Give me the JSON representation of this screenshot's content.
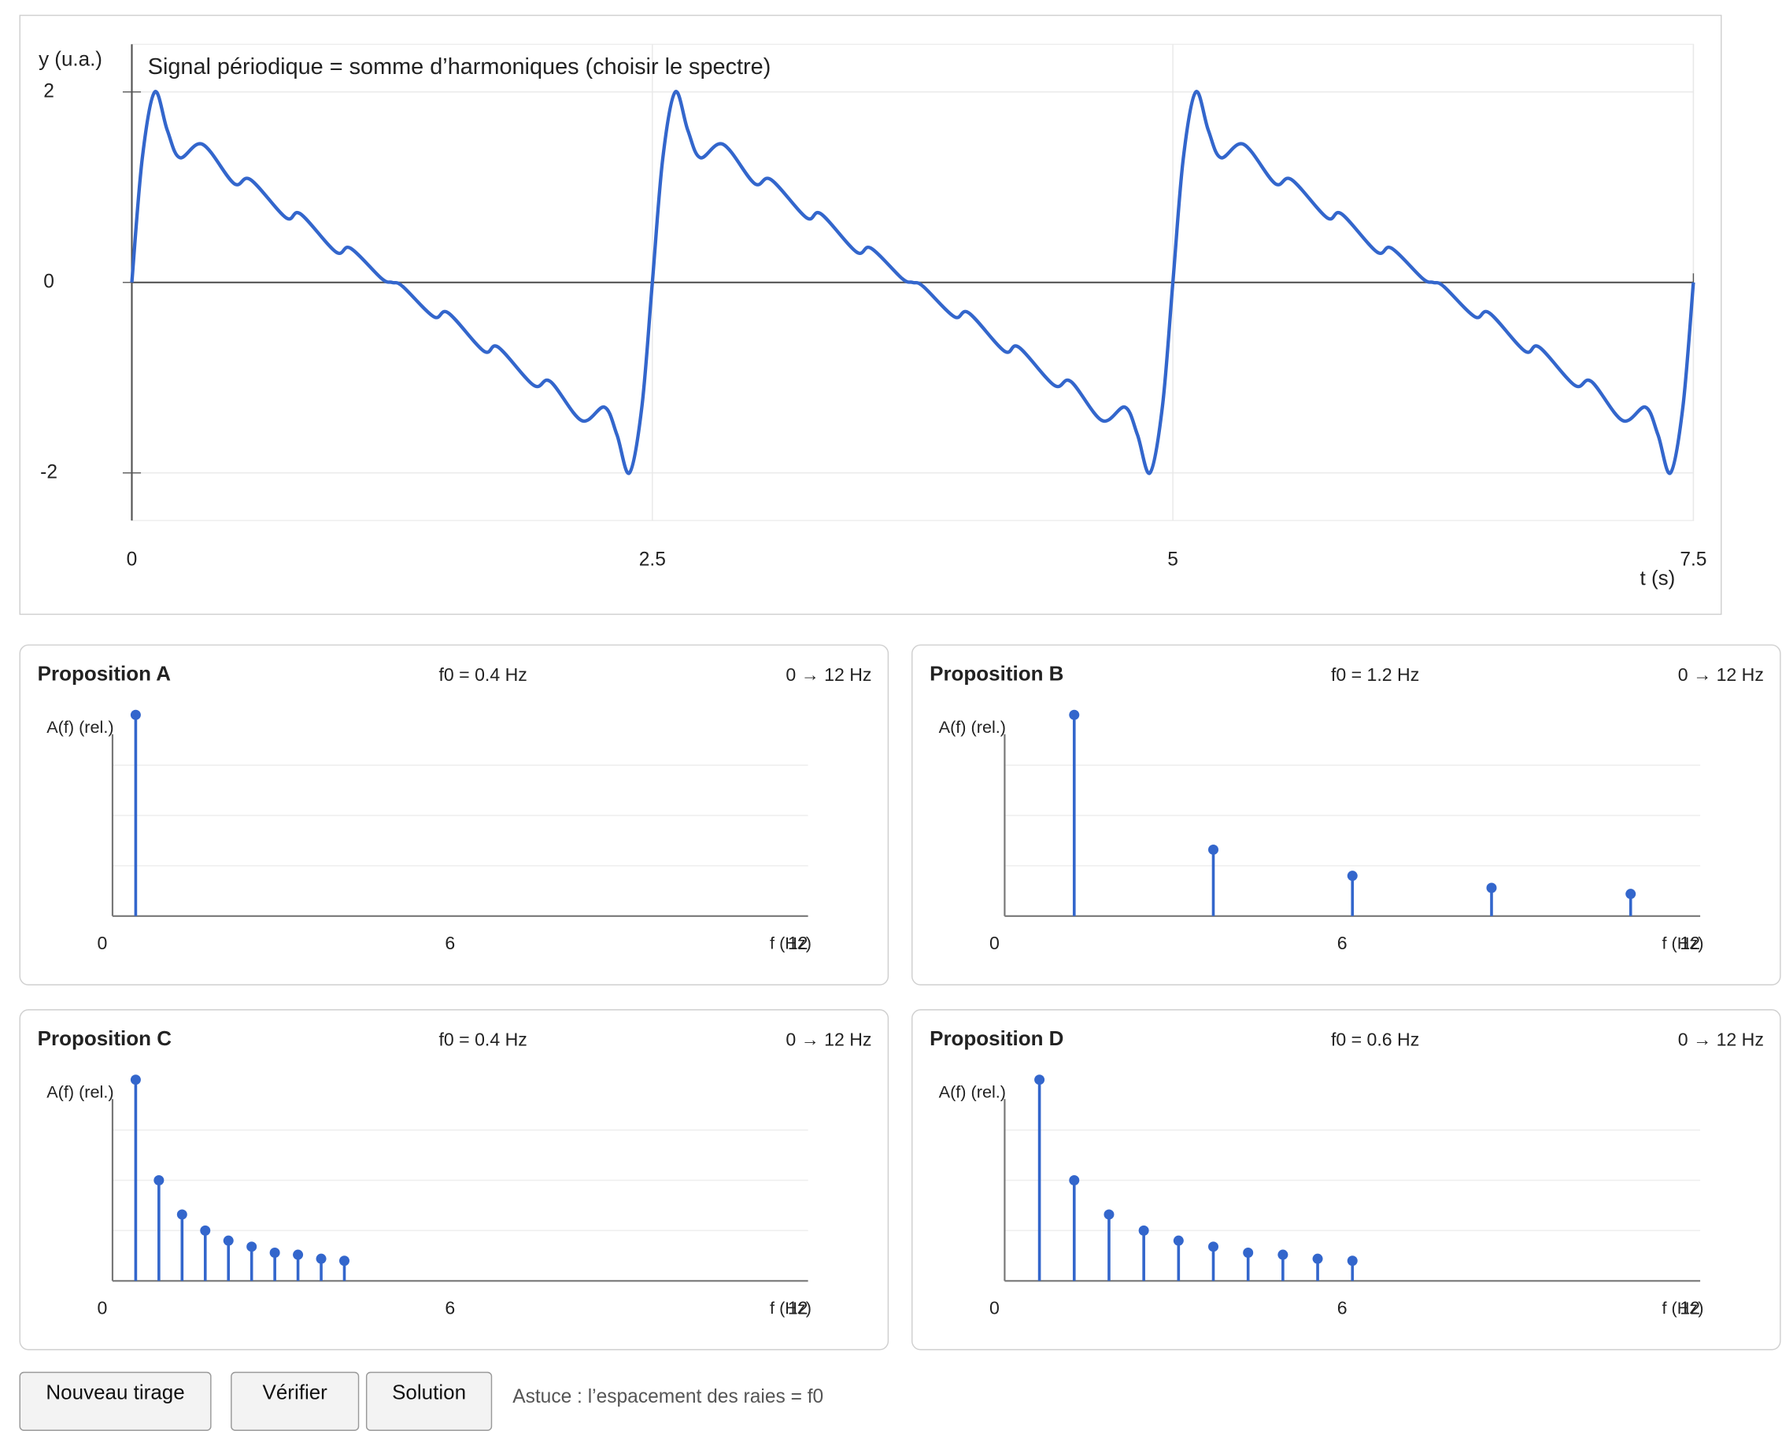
{
  "chart_data": [
    {
      "type": "line",
      "title": "Signal périodique = somme d’harmoniques (choisir le spectre)",
      "y_label": "y (u.a.)",
      "x_label": "t (s)",
      "color": "#3366cc",
      "x": [
        0,
        0.05,
        0.11,
        0.17,
        0.23,
        0.34,
        0.49,
        0.57,
        0.74,
        0.81,
        0.98,
        1.05,
        1.2,
        1.25,
        1.3,
        1.45,
        1.52,
        1.69,
        1.76,
        1.93,
        2.01,
        2.16,
        2.27,
        2.33,
        2.39,
        2.45,
        2.5,
        2.55,
        2.61,
        2.67,
        2.73,
        2.84,
        2.99,
        3.07,
        3.24,
        3.31,
        3.48,
        3.55,
        3.7,
        3.75,
        3.8,
        3.95,
        4.02,
        4.19,
        4.26,
        4.43,
        4.51,
        4.66,
        4.77,
        4.83,
        4.89,
        4.95,
        5,
        5.05,
        5.11,
        5.17,
        5.23,
        5.34,
        5.49,
        5.57,
        5.74,
        5.81,
        5.98,
        6.05,
        6.2,
        6.25,
        6.3,
        6.45,
        6.52,
        6.69,
        6.76,
        6.93,
        7.01,
        7.16,
        7.27,
        7.33,
        7.39,
        7.45,
        7.5
      ],
      "values": [
        0,
        1.3,
        2,
        1.6,
        1.31,
        1.45,
        1.04,
        1.08,
        0.68,
        0.72,
        0.32,
        0.36,
        0.04,
        0,
        -0.04,
        -0.36,
        -0.32,
        -0.72,
        -0.68,
        -1.08,
        -1.04,
        -1.45,
        -1.31,
        -1.6,
        -2,
        -1.3,
        0,
        1.3,
        2,
        1.6,
        1.31,
        1.45,
        1.04,
        1.08,
        0.68,
        0.72,
        0.32,
        0.36,
        0.04,
        0,
        -0.04,
        -0.36,
        -0.32,
        -0.72,
        -0.68,
        -1.08,
        -1.04,
        -1.45,
        -1.31,
        -1.6,
        -2,
        -1.3,
        0,
        1.3,
        2,
        1.6,
        1.31,
        1.45,
        1.04,
        1.08,
        0.68,
        0.72,
        0.32,
        0.36,
        0.04,
        0,
        -0.04,
        -0.36,
        -0.32,
        -0.72,
        -0.68,
        -1.08,
        -1.04,
        -1.45,
        -1.31,
        -1.6,
        -2,
        -1.3,
        0
      ],
      "xlim": [
        0,
        7.5
      ],
      "xticks": [
        0,
        2.5,
        5,
        7.5
      ],
      "ylim": [
        -2.5,
        2.5
      ],
      "yticks": [
        -2,
        0,
        2
      ]
    },
    {
      "type": "stem",
      "title": "Proposition A",
      "subtitle": "f0 = 0.4 Hz",
      "range_label": "0 → 12 Hz",
      "y_label": "A(f) (rel.)",
      "x_label": "f (Hz)",
      "color": "#3366cc",
      "x": [
        0.4
      ],
      "values": [
        1
      ],
      "xlim": [
        0,
        12
      ],
      "xticks": [
        0,
        6,
        12
      ],
      "ylim": [
        0,
        1
      ],
      "ygrid": [
        0.25,
        0.5,
        0.75
      ]
    },
    {
      "type": "stem",
      "title": "Proposition B",
      "subtitle": "f0 = 1.2 Hz",
      "range_label": "0 → 12 Hz",
      "y_label": "A(f) (rel.)",
      "x_label": "f (Hz)",
      "color": "#3366cc",
      "x": [
        1.2,
        3.6,
        6,
        8.4,
        10.8
      ],
      "values": [
        1,
        0.33,
        0.2,
        0.14,
        0.11
      ],
      "xlim": [
        0,
        12
      ],
      "xticks": [
        0,
        6,
        12
      ],
      "ylim": [
        0,
        1
      ],
      "ygrid": [
        0.25,
        0.5,
        0.75
      ]
    },
    {
      "type": "stem",
      "title": "Proposition C",
      "subtitle": "f0 = 0.4 Hz",
      "range_label": "0 → 12 Hz",
      "y_label": "A(f) (rel.)",
      "x_label": "f (Hz)",
      "color": "#3366cc",
      "x": [
        0.4,
        0.8,
        1.2,
        1.6,
        2,
        2.4,
        2.8,
        3.2,
        3.6,
        4
      ],
      "values": [
        1,
        0.5,
        0.33,
        0.25,
        0.2,
        0.17,
        0.14,
        0.13,
        0.11,
        0.1
      ],
      "xlim": [
        0,
        12
      ],
      "xticks": [
        0,
        6,
        12
      ],
      "ylim": [
        0,
        1
      ],
      "ygrid": [
        0.25,
        0.5,
        0.75
      ]
    },
    {
      "type": "stem",
      "title": "Proposition D",
      "subtitle": "f0 = 0.6 Hz",
      "range_label": "0 → 12 Hz",
      "y_label": "A(f) (rel.)",
      "x_label": "f (Hz)",
      "color": "#3366cc",
      "x": [
        0.6,
        1.2,
        1.8,
        2.4,
        3,
        3.6,
        4.2,
        4.8,
        5.4,
        6
      ],
      "values": [
        1,
        0.5,
        0.33,
        0.25,
        0.2,
        0.17,
        0.14,
        0.13,
        0.11,
        0.1
      ],
      "xlim": [
        0,
        12
      ],
      "xticks": [
        0,
        6,
        12
      ],
      "ylim": [
        0,
        1
      ],
      "ygrid": [
        0.25,
        0.5,
        0.75
      ]
    }
  ],
  "buttons": [
    "Nouveau tirage",
    "Vérifier",
    "Solution"
  ],
  "hint": "Astuce : l’espacement des raies = f0"
}
